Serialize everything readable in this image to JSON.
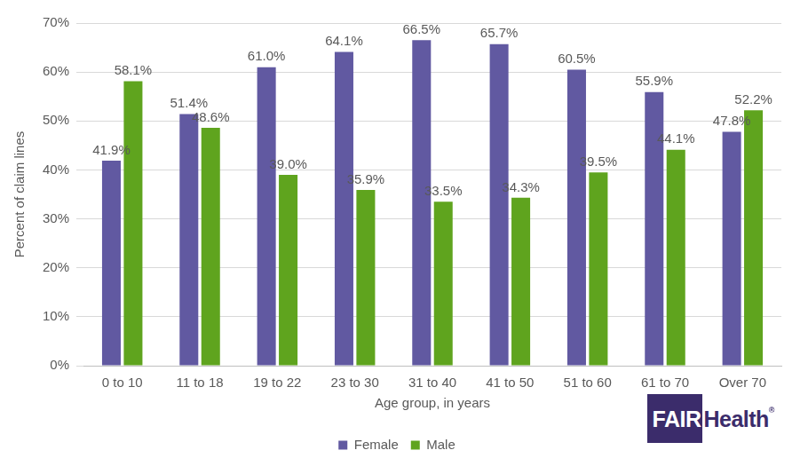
{
  "chart_data": {
    "type": "bar",
    "x_label": "Age group, in years",
    "y_label": "Percent of claim lines",
    "categories": [
      "0 to 10",
      "11 to 18",
      "19 to 22",
      "23 to 30",
      "31 to 40",
      "41 to 50",
      "51 to 60",
      "61 to 70",
      "Over 70"
    ],
    "series": [
      {
        "name": "Female",
        "color": "#6159a1",
        "values": [
          41.9,
          51.4,
          61.0,
          64.1,
          66.5,
          65.7,
          60.5,
          55.9,
          47.8
        ],
        "value_labels": [
          "41.9%",
          "51.4%",
          "61.0%",
          "64.1%",
          "66.5%",
          "65.7%",
          "60.5%",
          "55.9%",
          "47.8%"
        ]
      },
      {
        "name": "Male",
        "color": "#5fa41e",
        "values": [
          58.1,
          48.6,
          39.0,
          35.9,
          33.5,
          34.3,
          39.5,
          44.1,
          52.2
        ],
        "value_labels": [
          "58.1%",
          "48.6%",
          "39.0%",
          "35.9%",
          "33.5%",
          "34.3%",
          "39.5%",
          "44.1%",
          "52.2%"
        ]
      }
    ],
    "ylim": [
      0,
      70
    ],
    "yticks": [
      {
        "value": 0,
        "label": "0%"
      },
      {
        "value": 10,
        "label": "10%"
      },
      {
        "value": 20,
        "label": "20%"
      },
      {
        "value": 30,
        "label": "30%"
      },
      {
        "value": 40,
        "label": "40%"
      },
      {
        "value": 50,
        "label": "50%"
      },
      {
        "value": 60,
        "label": "60%"
      },
      {
        "value": 70,
        "label": "70%"
      }
    ],
    "grid": true,
    "legend": "bottom",
    "data_labels": true,
    "annotations": [
      "FAIR",
      "Health",
      "®"
    ]
  }
}
